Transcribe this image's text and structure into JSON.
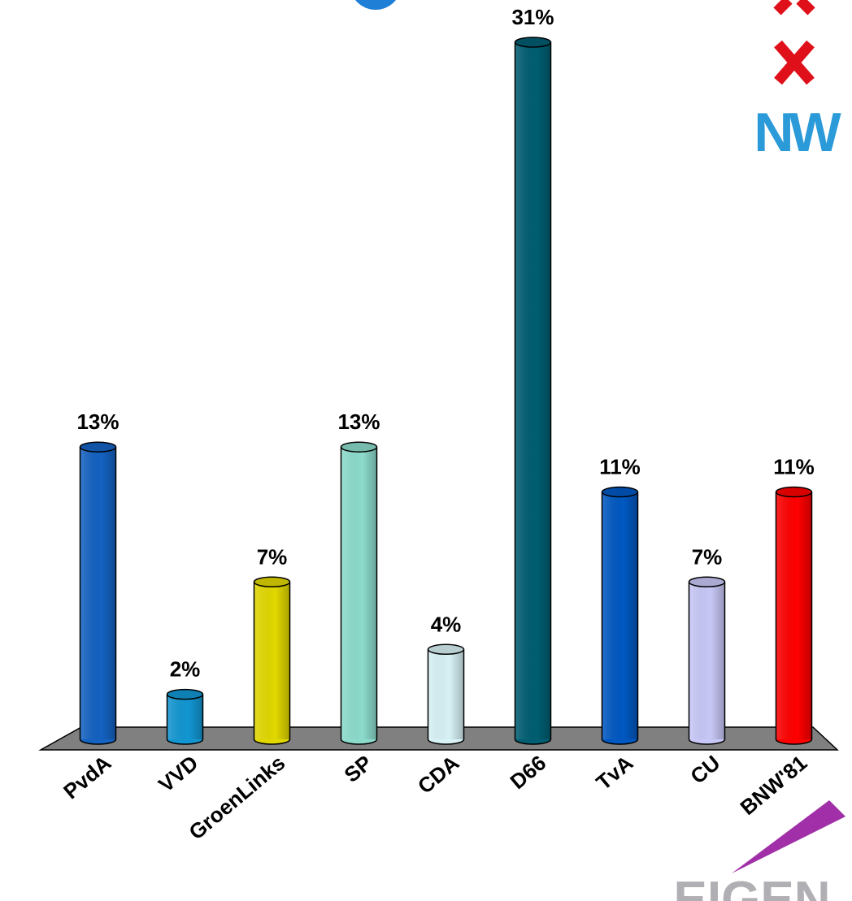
{
  "chart_data": {
    "type": "bar",
    "categories": [
      "PvdA",
      "VVD",
      "GroenLinks",
      "SP",
      "CDA",
      "D66",
      "TvA",
      "CU",
      "BNW'81"
    ],
    "values": [
      13,
      2,
      7,
      13,
      4,
      31,
      11,
      7,
      11
    ],
    "value_labels": [
      "13%",
      "2%",
      "7%",
      "13%",
      "4%",
      "31%",
      "11%",
      "7%",
      "11%"
    ],
    "colors": [
      "#1462c2",
      "#1296d2",
      "#e2d800",
      "#8cdccc",
      "#d8f2f6",
      "#005e72",
      "#0058c2",
      "#c8c8f8",
      "#ff0000"
    ],
    "logos": {
      "top": "NW",
      "bottom": "EIGEN"
    }
  }
}
